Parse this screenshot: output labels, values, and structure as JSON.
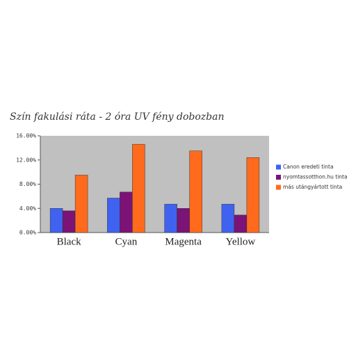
{
  "chart_data": {
    "type": "bar",
    "title": "Szín fakulási ráta - 2 óra UV fény dobozban",
    "categories": [
      "Black",
      "Cyan",
      "Magenta",
      "Yellow"
    ],
    "series": [
      {
        "name": "Canon eredeti tinta",
        "color": "#3f63f0",
        "values": [
          4.0,
          5.7,
          4.7,
          4.7
        ]
      },
      {
        "name": "nyomtassotthon.hu tinta",
        "color": "#7b1476",
        "values": [
          3.6,
          6.7,
          4.0,
          2.9
        ]
      },
      {
        "name": "más utángyártott tinta",
        "color": "#ff6a1c",
        "values": [
          9.5,
          14.6,
          13.5,
          12.4
        ]
      }
    ],
    "ylim": [
      0,
      16
    ],
    "yticks": [
      {
        "value": 0,
        "label": "0.00%"
      },
      {
        "value": 4,
        "label": "4.00%"
      },
      {
        "value": 8,
        "label": "8.00%"
      },
      {
        "value": 12,
        "label": "12.00%"
      },
      {
        "value": 16,
        "label": "16.00%"
      }
    ],
    "grid": false,
    "legend": "right"
  }
}
